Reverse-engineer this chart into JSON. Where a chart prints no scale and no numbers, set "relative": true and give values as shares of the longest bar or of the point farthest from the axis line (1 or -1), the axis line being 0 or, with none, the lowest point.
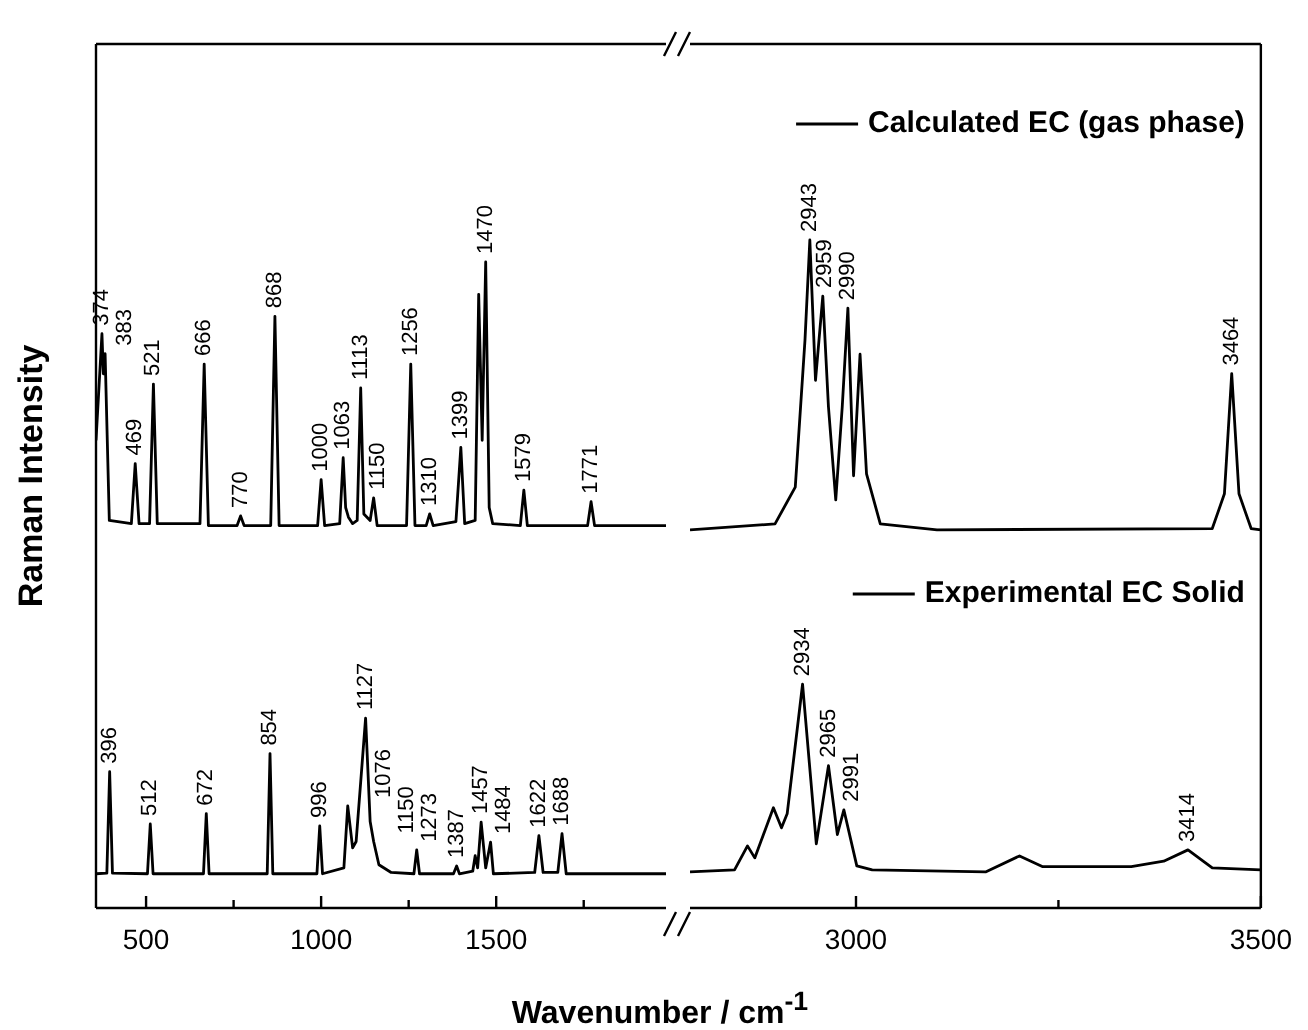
{
  "chart_data": [
    {
      "type": "line",
      "relative": true,
      "xlabel": "Wavenumber / cm$^{-1}$",
      "ylabel": "Raman Intensity",
      "xlim": [
        357,
        1985
      ],
      "xticks": [
        500,
        {
          "value": 750,
          "label": null
        },
        1000,
        {
          "value": 1250,
          "label": null
        },
        1500,
        {
          "value": 1750,
          "label": null
        }
      ],
      "marker": "none",
      "series": [
        {
          "color": "#000000",
          "x": [
            357,
            374,
            378,
            383,
            395,
            458,
            469,
            480,
            510,
            521,
            532,
            654,
            666,
            678,
            760,
            770,
            780,
            856,
            868,
            880,
            990,
            1000,
            1010,
            1053,
            1063,
            1070,
            1078,
            1090,
            1103,
            1113,
            1122,
            1140,
            1150,
            1160,
            1244,
            1256,
            1268,
            1300,
            1310,
            1320,
            1385,
            1399,
            1410,
            1440,
            1450,
            1460,
            1470,
            1480,
            1490,
            1569,
            1579,
            1589,
            1761,
            1771,
            1781,
            1985
          ],
          "values": [
            0.724,
            0.889,
            0.827,
            0.858,
            0.6,
            0.595,
            0.688,
            0.595,
            0.595,
            0.811,
            0.595,
            0.595,
            0.842,
            0.592,
            0.592,
            0.607,
            0.592,
            0.592,
            0.916,
            0.592,
            0.592,
            0.663,
            0.592,
            0.595,
            0.697,
            0.62,
            0.605,
            0.595,
            0.6,
            0.805,
            0.61,
            0.6,
            0.635,
            0.592,
            0.592,
            0.842,
            0.592,
            0.592,
            0.61,
            0.592,
            0.598,
            0.713,
            0.595,
            0.6,
            0.95,
            0.724,
            1.0,
            0.62,
            0.595,
            0.592,
            0.647,
            0.592,
            0.592,
            0.629,
            0.592,
            0.592
          ]
        },
        {
          "color": "#000000",
          "x": [
            357,
            388,
            396,
            404,
            504,
            512,
            520,
            664,
            672,
            680,
            846,
            854,
            862,
            988,
            996,
            1004,
            1065,
            1076,
            1090,
            1100,
            1127,
            1140,
            1150,
            1165,
            1200,
            1265,
            1273,
            1281,
            1378,
            1387,
            1395,
            1433,
            1440,
            1447,
            1457,
            1470,
            1484,
            1492,
            1610,
            1622,
            1634,
            1676,
            1688,
            1700,
            1985
          ],
          "values": [
            0.053,
            0.054,
            0.211,
            0.054,
            0.053,
            0.13,
            0.053,
            0.053,
            0.146,
            0.053,
            0.053,
            0.239,
            0.053,
            0.053,
            0.127,
            0.053,
            0.062,
            0.158,
            0.093,
            0.103,
            0.294,
            0.134,
            0.103,
            0.067,
            0.055,
            0.053,
            0.09,
            0.053,
            0.053,
            0.065,
            0.053,
            0.057,
            0.081,
            0.062,
            0.133,
            0.062,
            0.102,
            0.053,
            0.055,
            0.112,
            0.055,
            0.055,
            0.115,
            0.053,
            0.053
          ]
        }
      ],
      "annotations": [
        {
          "text": "374",
          "x": 374,
          "y": 0.889
        },
        {
          "text": "383",
          "x": 383,
          "y": 0.858
        },
        {
          "text": "469",
          "x": 469,
          "y": 0.688
        },
        {
          "text": "521",
          "x": 521,
          "y": 0.811
        },
        {
          "text": "666",
          "x": 666,
          "y": 0.842
        },
        {
          "text": "770",
          "x": 770,
          "y": 0.607
        },
        {
          "text": "868",
          "x": 868,
          "y": 0.916
        },
        {
          "text": "1000",
          "x": 1000,
          "y": 0.663
        },
        {
          "text": "1063",
          "x": 1063,
          "y": 0.697
        },
        {
          "text": "1113",
          "x": 1113,
          "y": 0.805
        },
        {
          "text": "1150",
          "x": 1150,
          "y": 0.635
        },
        {
          "text": "1256",
          "x": 1256,
          "y": 0.842
        },
        {
          "text": "1310",
          "x": 1310,
          "y": 0.61
        },
        {
          "text": "1399",
          "x": 1399,
          "y": 0.713
        },
        {
          "text": "1470",
          "x": 1470,
          "y": 1.0
        },
        {
          "text": "1579",
          "x": 1579,
          "y": 0.647
        },
        {
          "text": "1771",
          "x": 1771,
          "y": 0.629
        },
        {
          "text": "396",
          "x": 396,
          "y": 0.211
        },
        {
          "text": "512",
          "x": 512,
          "y": 0.13
        },
        {
          "text": "672",
          "x": 672,
          "y": 0.146
        },
        {
          "text": "854",
          "x": 854,
          "y": 0.239
        },
        {
          "text": "996",
          "x": 996,
          "y": 0.127
        },
        {
          "text": "1076",
          "x": 1076,
          "y": 0.158
        },
        {
          "text": "1127",
          "x": 1127,
          "y": 0.294
        },
        {
          "text": "1150",
          "x": 1150,
          "y": 0.103
        },
        {
          "text": "1273",
          "x": 1273,
          "y": 0.09
        },
        {
          "text": "1387",
          "x": 1387,
          "y": 0.065
        },
        {
          "text": "1457",
          "x": 1457,
          "y": 0.133
        },
        {
          "text": "1484",
          "x": 1484,
          "y": 0.102
        },
        {
          "text": "1622",
          "x": 1622,
          "y": 0.112
        },
        {
          "text": "1688",
          "x": 1688,
          "y": 0.115
        }
      ]
    },
    {
      "type": "line",
      "relative": true,
      "xlim": [
        2795,
        3500
      ],
      "xticks": [
        3000,
        {
          "value": 3250,
          "label": null
        },
        3500
      ],
      "marker": "none",
      "legend": "right",
      "series": [
        {
          "name": "Calculated EC (gas phase)",
          "color": "#000000",
          "x": [
            2795,
            2900,
            2925,
            2937,
            2943,
            2950,
            2959,
            2966,
            2975,
            2983,
            2990,
            2997,
            3005,
            3013,
            3030,
            3100,
            3440,
            3455,
            3464,
            3473,
            3488,
            3500
          ],
          "values": [
            0.566,
            0.575,
            0.63,
            0.85,
            1.0,
            0.79,
            0.916,
            0.75,
            0.611,
            0.75,
            0.898,
            0.647,
            0.829,
            0.65,
            0.575,
            0.566,
            0.568,
            0.62,
            0.8,
            0.62,
            0.568,
            0.566
          ]
        },
        {
          "name": "Experimental EC Solid",
          "color": "#000000",
          "x": [
            2795,
            2850,
            2866,
            2875,
            2898,
            2908,
            2915,
            2934,
            2951,
            2966,
            2977,
            2985,
            3001,
            3020,
            3160,
            3202,
            3230,
            3340,
            3380,
            3410,
            3440,
            3500
          ],
          "values": [
            0.054,
            0.057,
            0.093,
            0.075,
            0.15,
            0.12,
            0.141,
            0.335,
            0.096,
            0.213,
            0.11,
            0.147,
            0.063,
            0.057,
            0.054,
            0.078,
            0.062,
            0.062,
            0.07,
            0.087,
            0.06,
            0.057
          ]
        }
      ],
      "annotations": [
        {
          "text": "2943",
          "x": 2943,
          "y": 1.0
        },
        {
          "text": "2959",
          "x": 2959,
          "y": 0.916
        },
        {
          "text": "2990",
          "x": 2990,
          "y": 0.898
        },
        {
          "text": "3464",
          "x": 3464,
          "y": 0.8
        },
        {
          "text": "2934",
          "x": 2934,
          "y": 0.335
        },
        {
          "text": "2965",
          "x": 2966,
          "y": 0.213
        },
        {
          "text": "2991",
          "x": 2985,
          "y": 0.147
        },
        {
          "text": "3414",
          "x": 3410,
          "y": 0.087
        }
      ]
    }
  ]
}
